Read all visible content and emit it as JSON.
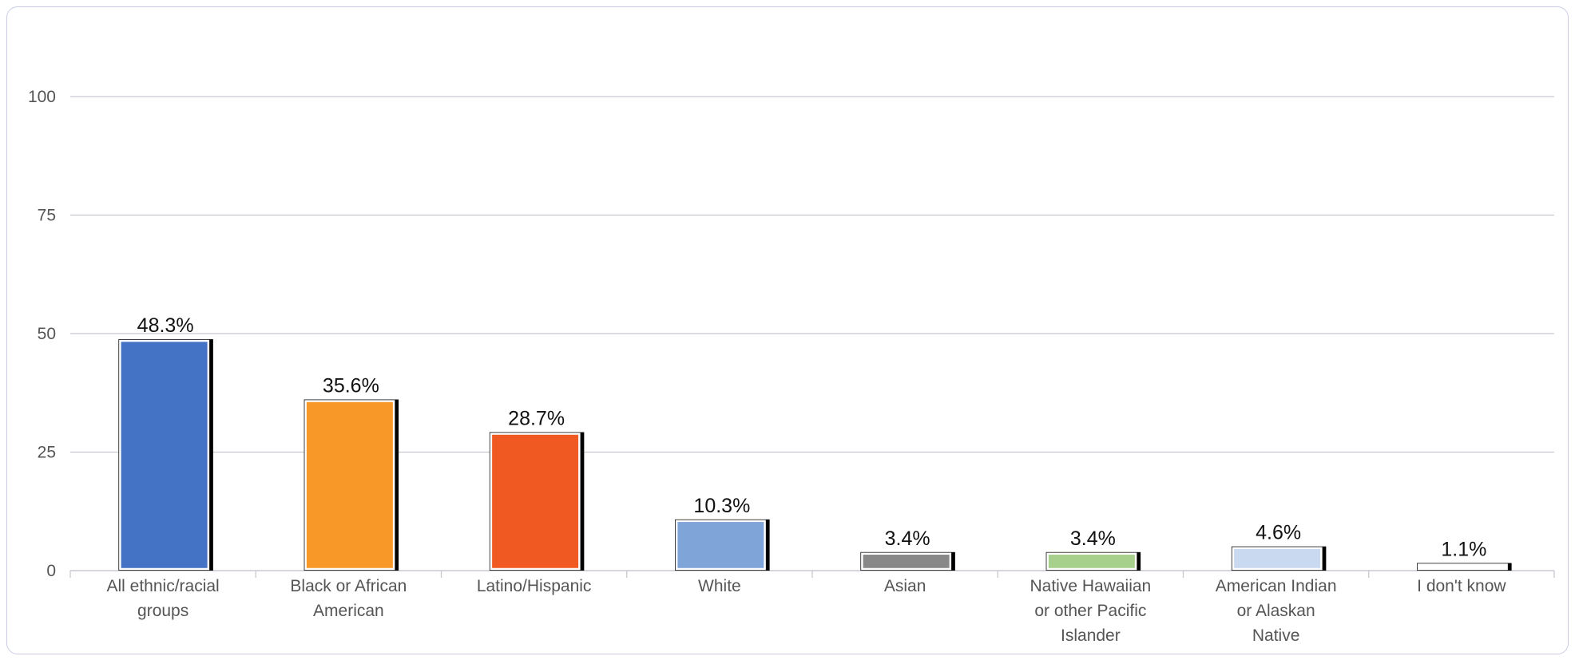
{
  "chart_data": {
    "type": "bar",
    "title": "",
    "xlabel": "",
    "ylabel": "",
    "ylim": [
      0,
      100
    ],
    "yticks": [
      0,
      25,
      50,
      75,
      100
    ],
    "grid": true,
    "legend": "none",
    "categories": [
      "All ethnic/racial groups",
      "Black or African American",
      "Latino/Hispanic",
      "White",
      "Asian",
      "Native Hawaiian or other Pacific Islander",
      "American Indian or Alaskan Native",
      "I don't know"
    ],
    "category_lines": [
      [
        "All ethnic/racial",
        "groups"
      ],
      [
        "Black or African",
        "American"
      ],
      [
        "Latino/Hispanic"
      ],
      [
        "White"
      ],
      [
        "Asian"
      ],
      [
        "Native Hawaiian",
        "or other Pacific",
        "Islander"
      ],
      [
        "American Indian",
        "or Alaskan",
        "Native"
      ],
      [
        "I don't know"
      ]
    ],
    "values": [
      48.3,
      35.6,
      28.7,
      10.3,
      3.4,
      3.4,
      4.6,
      1.1
    ],
    "data_labels": [
      "48.3%",
      "35.6%",
      "28.7%",
      "10.3%",
      "3.4%",
      "3.4%",
      "4.6%",
      "1.1%"
    ],
    "colors": [
      "#4472c4",
      "#f79828",
      "#f05a22",
      "#7fa4d8",
      "#888888",
      "#a7d08c",
      "#c9d9f0",
      "#ffffff"
    ],
    "gridline_color": "#c8c8d0",
    "shadow_color": "#000000"
  }
}
